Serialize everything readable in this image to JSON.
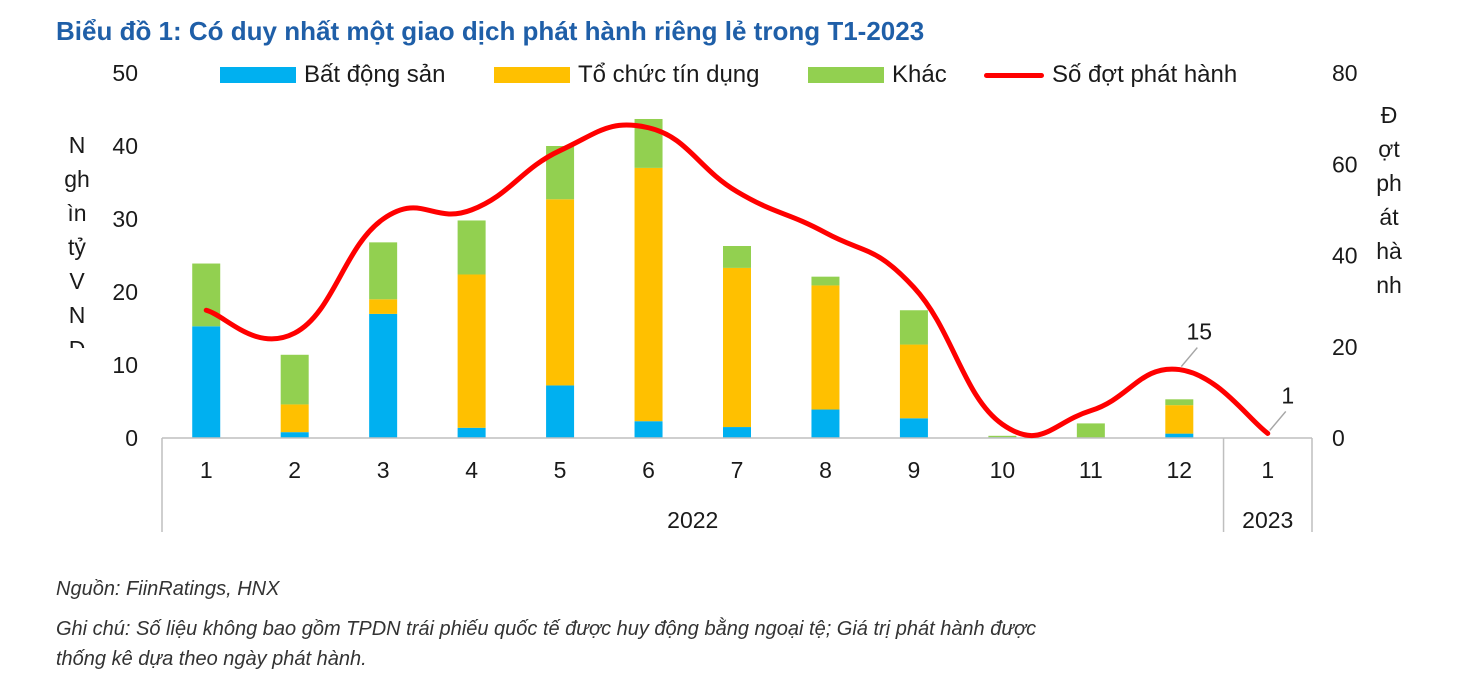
{
  "title": "Biểu đồ 1: Có duy nhất một giao dịch phát hành riêng lẻ trong T1-2023",
  "source": "Nguồn: FiinRatings, HNX",
  "note_line1": "Ghi chú: Số liệu không bao gồm TPDN trái phiếu quốc tế được huy động bằng ngoại tệ; Giá trị phát hành được",
  "note_line2": "thống kê dựa theo ngày phát hành.",
  "colors": {
    "bat_dong_san": "#00b0f0",
    "to_chuc_tin_dung": "#ffc000",
    "khac": "#92d050",
    "line": "#ff0000",
    "title": "#1f5fa8"
  },
  "chart_data": {
    "type": "bar",
    "stacked": true,
    "categories": [
      "1",
      "2",
      "3",
      "4",
      "5",
      "6",
      "7",
      "8",
      "9",
      "10",
      "11",
      "12",
      "1"
    ],
    "group_labels": [
      {
        "label": "2022",
        "from": 0,
        "to": 11
      },
      {
        "label": "2023",
        "from": 12,
        "to": 12
      }
    ],
    "series": [
      {
        "name": "Bất động sản",
        "color": "#00b0f0",
        "values": [
          15.3,
          0.8,
          17.0,
          1.4,
          7.2,
          2.3,
          1.5,
          3.9,
          2.7,
          0.1,
          0,
          0.6,
          0
        ]
      },
      {
        "name": "Tổ chức tín dụng",
        "color": "#ffc000",
        "values": [
          0,
          3.8,
          2.0,
          21.0,
          25.5,
          34.7,
          21.8,
          17.0,
          10.1,
          0,
          0,
          3.9,
          0
        ]
      },
      {
        "name": "Khác",
        "color": "#92d050",
        "values": [
          8.6,
          6.8,
          7.8,
          7.4,
          7.3,
          6.7,
          3.0,
          1.2,
          4.7,
          0.2,
          2.0,
          0.8,
          0
        ]
      }
    ],
    "line_series": {
      "name": "Số đợt phát hành",
      "color": "#ff0000",
      "axis": "right",
      "values": [
        28,
        23,
        48,
        50,
        63,
        68,
        54,
        45,
        33,
        3,
        6,
        15,
        1
      ]
    },
    "ylabel_left": "Nghìn tỷ VNĐ",
    "ylabel_left_lines": [
      "N",
      "gh",
      "ìn",
      "tỷ",
      "V",
      "N",
      "Đ"
    ],
    "ylim_left": [
      0,
      50
    ],
    "yticks_left": [
      "0",
      "10",
      "20",
      "30",
      "40",
      "50"
    ],
    "ylabel_right": "Đợt phát hành",
    "ylabel_right_lines": [
      "Đ",
      "ợt",
      "ph",
      "át",
      "hà",
      "nh"
    ],
    "ylim_right": [
      0,
      80
    ],
    "yticks_right": [
      "0",
      "20",
      "40",
      "60",
      "80"
    ],
    "data_labels": [
      {
        "index": 11,
        "text": "15"
      },
      {
        "index": 12,
        "text": "1"
      }
    ],
    "legend_position": "top",
    "grid": false
  }
}
